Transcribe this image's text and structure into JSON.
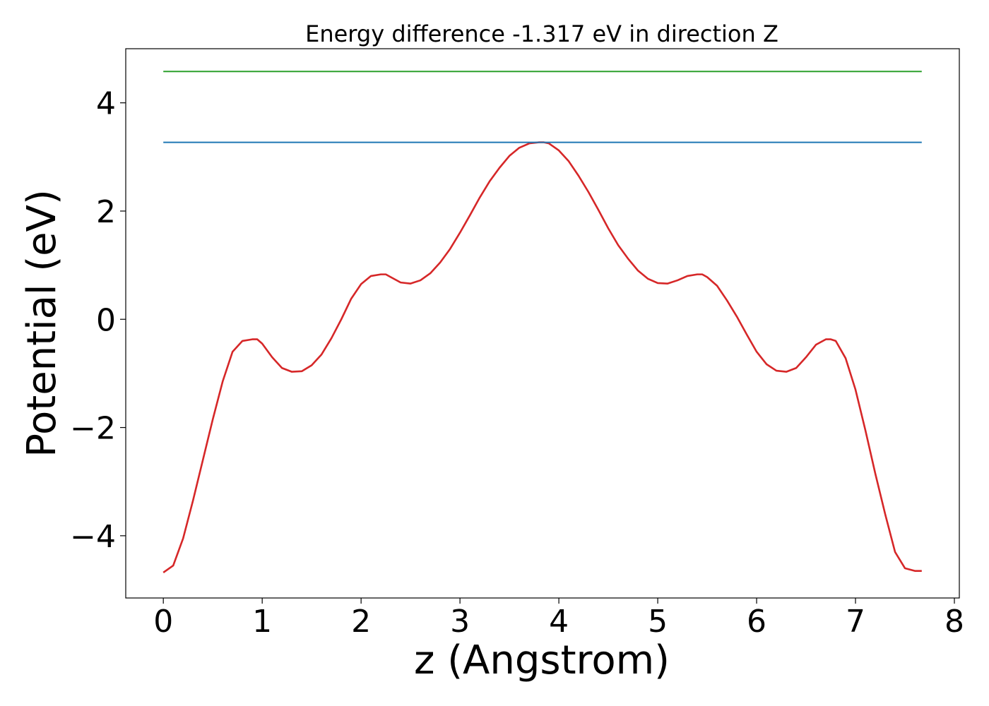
{
  "chart_data": {
    "type": "line",
    "title": "Energy difference -1.317 eV in direction Z",
    "xlabel": "z (Angstrom)",
    "ylabel": "Potential (eV)",
    "xlim": [
      -0.38,
      8.05
    ],
    "ylim": [
      -5.15,
      5.0
    ],
    "xticks": [
      0,
      1,
      2,
      3,
      4,
      5,
      6,
      7,
      8
    ],
    "xtick_labels": [
      "0",
      "1",
      "2",
      "3",
      "4",
      "5",
      "6",
      "7",
      "8"
    ],
    "yticks": [
      4,
      2,
      0,
      -2,
      -4
    ],
    "ytick_labels": [
      "4",
      "2",
      "0",
      "−2",
      "−4"
    ],
    "grid": false,
    "series": [
      {
        "color": "#d62728",
        "x": [
          0.0,
          0.1,
          0.2,
          0.3,
          0.4,
          0.5,
          0.6,
          0.7,
          0.8,
          0.9,
          0.95,
          1.0,
          1.1,
          1.2,
          1.3,
          1.4,
          1.5,
          1.6,
          1.7,
          1.8,
          1.9,
          2.0,
          2.1,
          2.2,
          2.25,
          2.3,
          2.4,
          2.5,
          2.6,
          2.7,
          2.8,
          2.9,
          3.0,
          3.1,
          3.2,
          3.3,
          3.4,
          3.5,
          3.6,
          3.7,
          3.8,
          3.85,
          3.9,
          4.0,
          4.1,
          4.2,
          4.3,
          4.4,
          4.5,
          4.6,
          4.7,
          4.8,
          4.9,
          5.0,
          5.1,
          5.2,
          5.3,
          5.4,
          5.45,
          5.5,
          5.6,
          5.7,
          5.8,
          5.9,
          6.0,
          6.1,
          6.2,
          6.3,
          6.4,
          6.5,
          6.6,
          6.7,
          6.75,
          6.8,
          6.9,
          7.0,
          7.1,
          7.2,
          7.3,
          7.4,
          7.5,
          7.6,
          7.67
        ],
        "y": [
          -4.68,
          -4.55,
          -4.05,
          -3.35,
          -2.6,
          -1.85,
          -1.15,
          -0.6,
          -0.4,
          -0.37,
          -0.37,
          -0.45,
          -0.7,
          -0.9,
          -0.97,
          -0.96,
          -0.85,
          -0.65,
          -0.35,
          0.0,
          0.38,
          0.65,
          0.8,
          0.83,
          0.83,
          0.78,
          0.68,
          0.66,
          0.72,
          0.85,
          1.05,
          1.3,
          1.6,
          1.92,
          2.25,
          2.55,
          2.8,
          3.02,
          3.17,
          3.25,
          3.27,
          3.27,
          3.25,
          3.12,
          2.92,
          2.65,
          2.35,
          2.02,
          1.68,
          1.37,
          1.12,
          0.9,
          0.75,
          0.67,
          0.66,
          0.72,
          0.8,
          0.83,
          0.83,
          0.78,
          0.62,
          0.35,
          0.05,
          -0.28,
          -0.6,
          -0.83,
          -0.95,
          -0.97,
          -0.9,
          -0.7,
          -0.47,
          -0.37,
          -0.37,
          -0.4,
          -0.72,
          -1.3,
          -2.05,
          -2.85,
          -3.6,
          -4.3,
          -4.6,
          -4.65,
          -4.65
        ]
      },
      {
        "color": "#1f77b4",
        "x": [
          0.0,
          7.67
        ],
        "y": [
          3.27,
          3.27
        ]
      },
      {
        "color": "#2ca02c",
        "x": [
          0.0,
          7.67
        ],
        "y": [
          4.58,
          4.58
        ]
      }
    ]
  }
}
